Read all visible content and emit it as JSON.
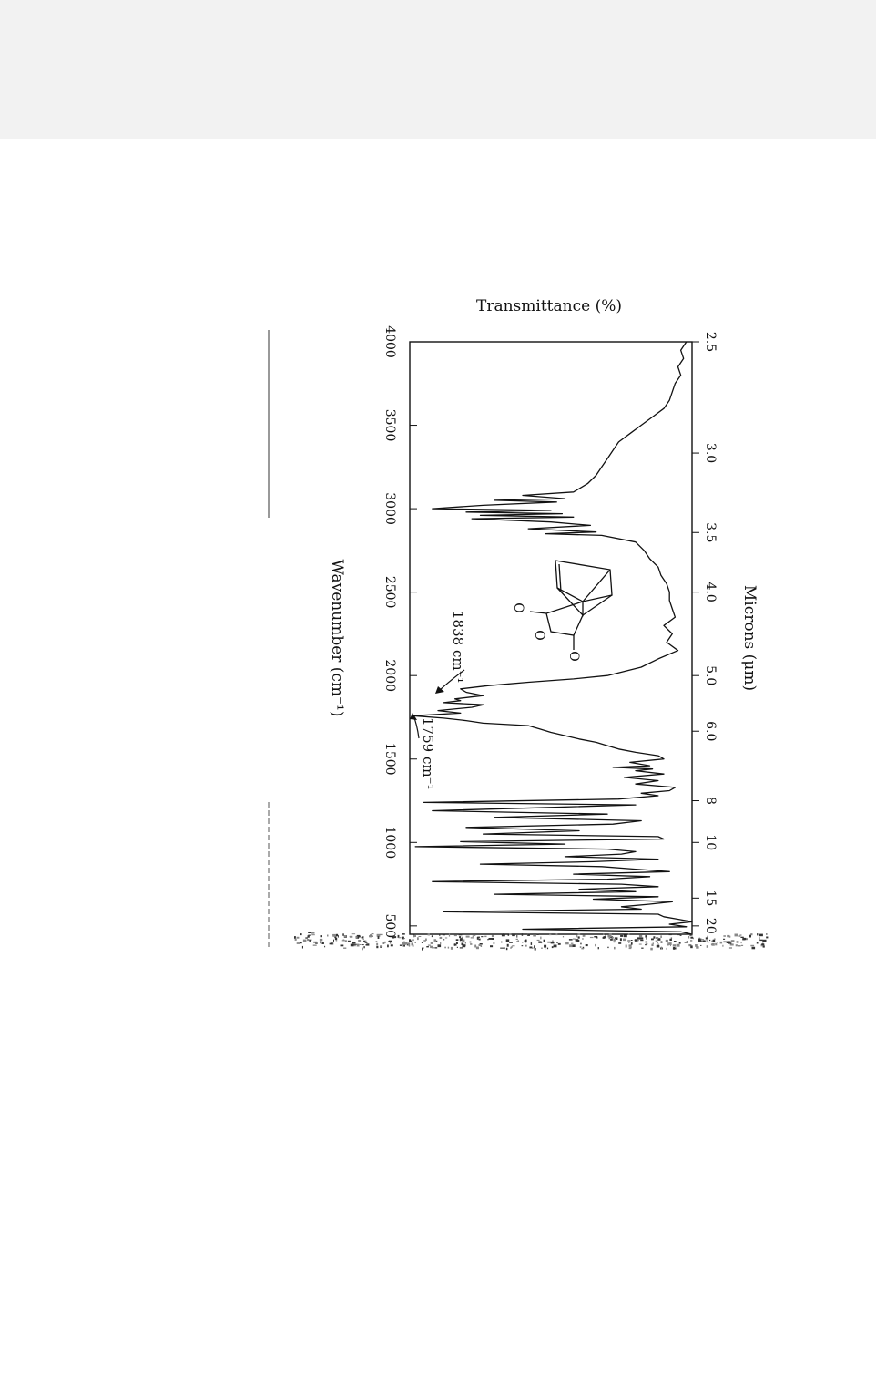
{
  "colors": {
    "ink": "#111111",
    "background": "#ffffff",
    "top_bar": "#f2f2f2"
  },
  "chart_data": {
    "type": "line",
    "orientation": "rotated 90 degrees clockwise",
    "title": "",
    "xlabel": "Wavenumber (cm⁻¹)",
    "ylabel": "Transmittance (%)",
    "secondary_xlabel": "Microns (μm)",
    "xlim": [
      4000,
      450
    ],
    "ylim": [
      0,
      100
    ],
    "wavenumber_ticks": [
      "4000",
      "3500",
      "3000",
      "2500",
      "2000",
      "1500",
      "1000",
      "500"
    ],
    "wavenumber_tick_values": [
      4000,
      3500,
      3000,
      2500,
      2000,
      1500,
      1000,
      500
    ],
    "micron_ticks": [
      "2.5",
      "3.0",
      "3.5",
      "4.0",
      "5.0",
      "6.0",
      "8",
      "10",
      "15",
      "20"
    ],
    "micron_tick_values": [
      2.5,
      3.0,
      3.5,
      4.0,
      5.0,
      6.0,
      8,
      10,
      15,
      20
    ],
    "annotations": [
      {
        "text": "1838 cm⁻¹",
        "wavenumber": 1838,
        "transmittance": 12
      },
      {
        "text": "1759 cm⁻¹",
        "wavenumber": 1759,
        "transmittance": 1
      }
    ],
    "structure_labels": [
      "O",
      "O",
      "O"
    ],
    "series": [
      {
        "x": [
          4000,
          3950,
          3900,
          3850,
          3800,
          3750,
          3700,
          3650,
          3600,
          3550,
          3500,
          3450,
          3400,
          3350,
          3300,
          3250,
          3200,
          3150,
          3100,
          3080,
          3060,
          3050,
          3040,
          3020,
          3000,
          2990,
          2980,
          2970,
          2960,
          2950,
          2940,
          2920,
          2900,
          2880,
          2860,
          2850,
          2840,
          2800,
          2750,
          2700,
          2650,
          2600,
          2550,
          2500,
          2450,
          2400,
          2350,
          2300,
          2250,
          2200,
          2150,
          2100,
          2050,
          2000,
          1980,
          1960,
          1940,
          1920,
          1900,
          1880,
          1860,
          1850,
          1838,
          1825,
          1810,
          1790,
          1775,
          1759,
          1745,
          1730,
          1715,
          1700,
          1680,
          1660,
          1640,
          1620,
          1600,
          1580,
          1560,
          1540,
          1520,
          1500,
          1480,
          1460,
          1450,
          1440,
          1430,
          1410,
          1390,
          1370,
          1350,
          1330,
          1310,
          1295,
          1280,
          1260,
          1240,
          1225,
          1210,
          1190,
          1170,
          1150,
          1130,
          1110,
          1090,
          1070,
          1050,
          1035,
          1020,
          1005,
          990,
          975,
          960,
          945,
          930,
          915,
          900,
          885,
          870,
          855,
          840,
          825,
          810,
          795,
          780,
          765,
          750,
          735,
          720,
          705,
          690,
          675,
          660,
          645,
          630,
          615,
          600,
          585,
          570,
          555,
          540,
          525,
          510,
          495,
          480,
          465,
          450
        ],
        "values": [
          98,
          96,
          97,
          95,
          96,
          94,
          93,
          92,
          90,
          86,
          82,
          78,
          74,
          72,
          70,
          68,
          66,
          63,
          58,
          40,
          55,
          30,
          52,
          26,
          8,
          50,
          20,
          54,
          25,
          58,
          22,
          50,
          64,
          42,
          66,
          48,
          68,
          80,
          83,
          85,
          88,
          89,
          91,
          92,
          92,
          93,
          94,
          90,
          93,
          91,
          95,
          88,
          82,
          70,
          58,
          42,
          28,
          18,
          20,
          26,
          16,
          18,
          12,
          26,
          22,
          10,
          18,
          1,
          12,
          20,
          26,
          42,
          46,
          50,
          55,
          60,
          66,
          70,
          74,
          80,
          88,
          90,
          78,
          85,
          72,
          86,
          80,
          90,
          76,
          88,
          80,
          94,
          92,
          82,
          88,
          74,
          5,
          80,
          50,
          8,
          70,
          30,
          82,
          72,
          20,
          60,
          26,
          88,
          90,
          18,
          55,
          2,
          70,
          80,
          75,
          55,
          88,
          65,
          25,
          68,
          80,
          92,
          58,
          85,
          70,
          8,
          75,
          88,
          60,
          80,
          30,
          88,
          65,
          93,
          85,
          75,
          82,
          12,
          88,
          90,
          95,
          100,
          92,
          98,
          40,
          96,
          100
        ]
      }
    ]
  }
}
